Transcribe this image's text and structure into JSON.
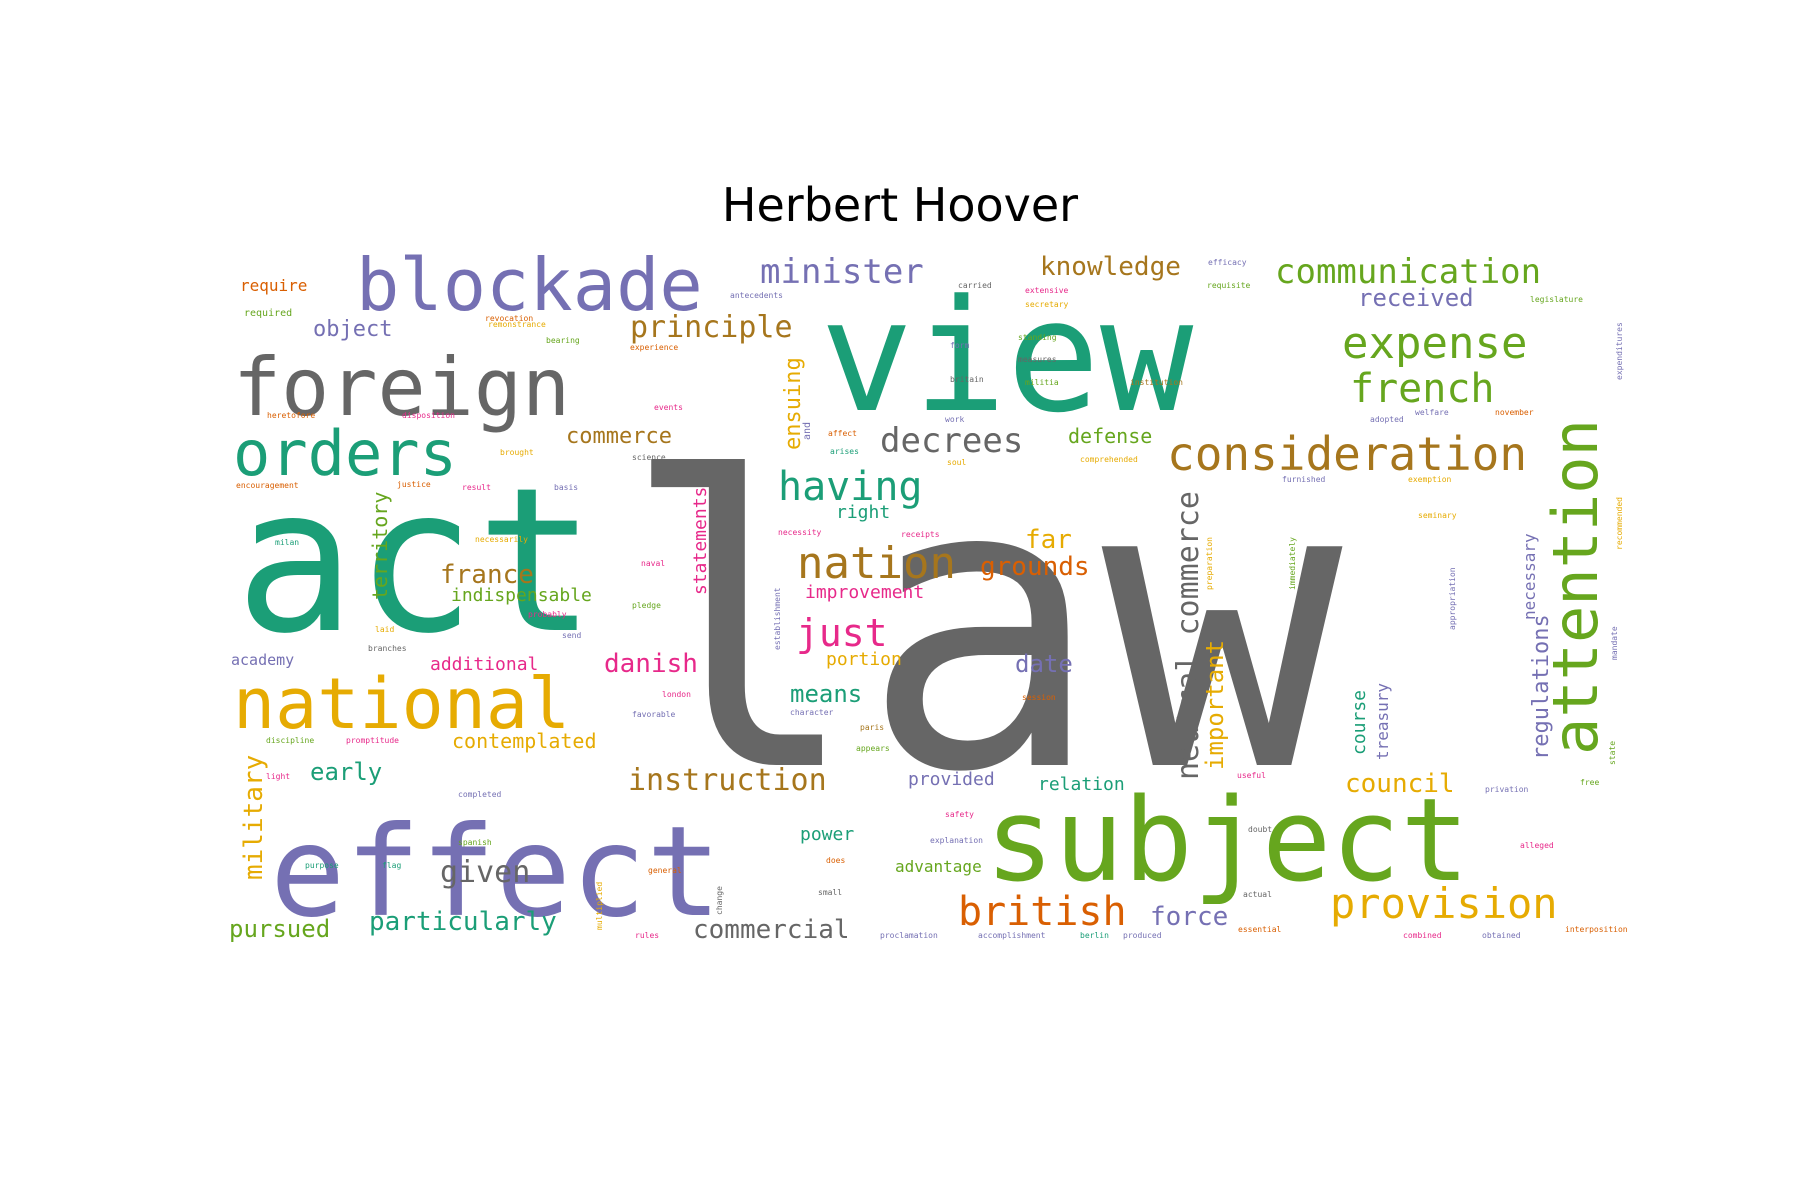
{
  "title": "Herbert Hoover",
  "palette": {
    "teal": "#1b9e77",
    "orange": "#d95f02",
    "purple": "#7570b3",
    "pink": "#e7298a",
    "green": "#66a61e",
    "gold": "#e6ab02",
    "brown": "#a6761d",
    "gray": "#666666"
  },
  "words": [
    {
      "text": "law",
      "color": "gray"
    },
    {
      "text": "act",
      "color": "teal"
    },
    {
      "text": "view",
      "color": "teal"
    },
    {
      "text": "effect",
      "color": "purple"
    },
    {
      "text": "subject",
      "color": "green"
    },
    {
      "text": "foreign",
      "color": "gray"
    },
    {
      "text": "blockade",
      "color": "purple"
    },
    {
      "text": "national",
      "color": "gold"
    },
    {
      "text": "orders",
      "color": "teal"
    },
    {
      "text": "attention",
      "color": "green"
    },
    {
      "text": "consideration",
      "color": "brown"
    },
    {
      "text": "expense",
      "color": "green"
    },
    {
      "text": "french",
      "color": "green"
    },
    {
      "text": "communication",
      "color": "green"
    },
    {
      "text": "provision",
      "color": "gold"
    },
    {
      "text": "british",
      "color": "orange"
    },
    {
      "text": "nation",
      "color": "brown"
    },
    {
      "text": "having",
      "color": "teal"
    },
    {
      "text": "minister",
      "color": "purple"
    },
    {
      "text": "decrees",
      "color": "gray"
    },
    {
      "text": "neutral commerce",
      "color": "gray"
    },
    {
      "text": "instruction",
      "color": "brown"
    },
    {
      "text": "principle",
      "color": "brown"
    },
    {
      "text": "just",
      "color": "pink"
    },
    {
      "text": "knowledge",
      "color": "brown"
    },
    {
      "text": "danish",
      "color": "pink"
    },
    {
      "text": "grounds",
      "color": "orange"
    },
    {
      "text": "far",
      "color": "gold"
    },
    {
      "text": "given",
      "color": "gray"
    },
    {
      "text": "particularly",
      "color": "teal"
    },
    {
      "text": "commercial",
      "color": "gray"
    },
    {
      "text": "france",
      "color": "brown"
    },
    {
      "text": "council",
      "color": "gold"
    },
    {
      "text": "force",
      "color": "purple"
    },
    {
      "text": "pursued",
      "color": "green"
    },
    {
      "text": "military",
      "color": "gold"
    },
    {
      "text": "important",
      "color": "gold"
    },
    {
      "text": "regulations",
      "color": "purple"
    },
    {
      "text": "received",
      "color": "purple"
    },
    {
      "text": "means",
      "color": "teal"
    },
    {
      "text": "date",
      "color": "purple"
    },
    {
      "text": "early",
      "color": "teal"
    },
    {
      "text": "commerce",
      "color": "brown"
    },
    {
      "text": "ensuing",
      "color": "gold"
    },
    {
      "text": "object",
      "color": "purple"
    },
    {
      "text": "defense",
      "color": "green"
    },
    {
      "text": "contemplated",
      "color": "gold"
    },
    {
      "text": "additional",
      "color": "pink"
    },
    {
      "text": "statements",
      "color": "pink"
    },
    {
      "text": "territory",
      "color": "green"
    },
    {
      "text": "indispensable",
      "color": "green"
    },
    {
      "text": "improvement",
      "color": "pink"
    },
    {
      "text": "portion",
      "color": "gold"
    },
    {
      "text": "course",
      "color": "teal"
    },
    {
      "text": "treasury",
      "color": "purple"
    },
    {
      "text": "necessary",
      "color": "purple"
    },
    {
      "text": "provided",
      "color": "purple"
    },
    {
      "text": "relation",
      "color": "teal"
    },
    {
      "text": "power",
      "color": "teal"
    },
    {
      "text": "advantage",
      "color": "green"
    },
    {
      "text": "right",
      "color": "teal"
    },
    {
      "text": "require",
      "color": "orange"
    },
    {
      "text": "academy",
      "color": "purple"
    },
    {
      "text": "required",
      "color": "green"
    },
    {
      "text": "remonstrance",
      "color": "gold"
    },
    {
      "text": "bearing",
      "color": "green"
    },
    {
      "text": "experience",
      "color": "orange"
    },
    {
      "text": "heretofore",
      "color": "orange"
    },
    {
      "text": "disposition",
      "color": "pink"
    },
    {
      "text": "brought",
      "color": "gold"
    },
    {
      "text": "encouragement",
      "color": "orange"
    },
    {
      "text": "justice",
      "color": "orange"
    },
    {
      "text": "result",
      "color": "pink"
    },
    {
      "text": "basis",
      "color": "purple"
    },
    {
      "text": "science",
      "color": "gray"
    },
    {
      "text": "necessarily",
      "color": "gold"
    },
    {
      "text": "milan",
      "color": "teal"
    },
    {
      "text": "naval",
      "color": "pink"
    },
    {
      "text": "pledge",
      "color": "green"
    },
    {
      "text": "probably",
      "color": "pink"
    },
    {
      "text": "laid",
      "color": "gold"
    },
    {
      "text": "send",
      "color": "purple"
    },
    {
      "text": "branches",
      "color": "gray"
    },
    {
      "text": "london",
      "color": "pink"
    },
    {
      "text": "favorable",
      "color": "purple"
    },
    {
      "text": "discipline",
      "color": "green"
    },
    {
      "text": "promptitude",
      "color": "pink"
    },
    {
      "text": "light",
      "color": "pink"
    },
    {
      "text": "completed",
      "color": "purple"
    },
    {
      "text": "spanish",
      "color": "green"
    },
    {
      "text": "purpose",
      "color": "teal"
    },
    {
      "text": "flag",
      "color": "teal"
    },
    {
      "text": "general",
      "color": "orange"
    },
    {
      "text": "multiplied",
      "color": "gold"
    },
    {
      "text": "change",
      "color": "gray"
    },
    {
      "text": "rules",
      "color": "pink"
    },
    {
      "text": "proclamation",
      "color": "purple"
    },
    {
      "text": "accomplishment",
      "color": "purple"
    },
    {
      "text": "berlin",
      "color": "teal"
    },
    {
      "text": "produced",
      "color": "purple"
    },
    {
      "text": "essential",
      "color": "orange"
    },
    {
      "text": "combined",
      "color": "pink"
    },
    {
      "text": "obtained",
      "color": "purple"
    },
    {
      "text": "interposition",
      "color": "orange"
    },
    {
      "text": "alleged",
      "color": "pink"
    },
    {
      "text": "actual",
      "color": "gray"
    },
    {
      "text": "doubt",
      "color": "gray"
    },
    {
      "text": "useful",
      "color": "pink"
    },
    {
      "text": "privation",
      "color": "purple"
    },
    {
      "text": "free",
      "color": "green"
    },
    {
      "text": "state",
      "color": "green"
    },
    {
      "text": "mandate",
      "color": "purple"
    },
    {
      "text": "appropriation",
      "color": "purple"
    },
    {
      "text": "preparation",
      "color": "gold"
    },
    {
      "text": "immediately",
      "color": "green"
    },
    {
      "text": "seminary",
      "color": "gold"
    },
    {
      "text": "exemption",
      "color": "gold"
    },
    {
      "text": "furnished",
      "color": "purple"
    },
    {
      "text": "recommended",
      "color": "gold"
    },
    {
      "text": "expenditures",
      "color": "purple"
    },
    {
      "text": "legislature",
      "color": "green"
    },
    {
      "text": "requisite",
      "color": "green"
    },
    {
      "text": "efficacy",
      "color": "purple"
    },
    {
      "text": "welfare",
      "color": "purple"
    },
    {
      "text": "november",
      "color": "orange"
    },
    {
      "text": "adopted",
      "color": "purple"
    },
    {
      "text": "institution",
      "color": "brown"
    },
    {
      "text": "comprehended",
      "color": "gold"
    },
    {
      "text": "carried",
      "color": "gray"
    },
    {
      "text": "extensive",
      "color": "pink"
    },
    {
      "text": "secretary",
      "color": "gold"
    },
    {
      "text": "standing",
      "color": "green"
    },
    {
      "text": "measures",
      "color": "gray"
    },
    {
      "text": "militia",
      "color": "green"
    },
    {
      "text": "britain",
      "color": "gray"
    },
    {
      "text": "form",
      "color": "purple"
    },
    {
      "text": "work",
      "color": "purple"
    },
    {
      "text": "affect",
      "color": "orange"
    },
    {
      "text": "arises",
      "color": "teal"
    },
    {
      "text": "and",
      "color": "purple"
    },
    {
      "text": "soul",
      "color": "gold"
    },
    {
      "text": "events",
      "color": "pink"
    },
    {
      "text": "antecedents",
      "color": "purple"
    },
    {
      "text": "receipts",
      "color": "pink"
    },
    {
      "text": "necessity",
      "color": "pink"
    },
    {
      "text": "establishment",
      "color": "purple"
    },
    {
      "text": "character",
      "color": "purple"
    },
    {
      "text": "session",
      "color": "orange"
    },
    {
      "text": "paris",
      "color": "brown"
    },
    {
      "text": "appears",
      "color": "green"
    },
    {
      "text": "safety",
      "color": "pink"
    },
    {
      "text": "explanation",
      "color": "purple"
    },
    {
      "text": "does",
      "color": "orange"
    },
    {
      "text": "small",
      "color": "gray"
    },
    {
      "text": "revocation",
      "color": "orange"
    }
  ]
}
